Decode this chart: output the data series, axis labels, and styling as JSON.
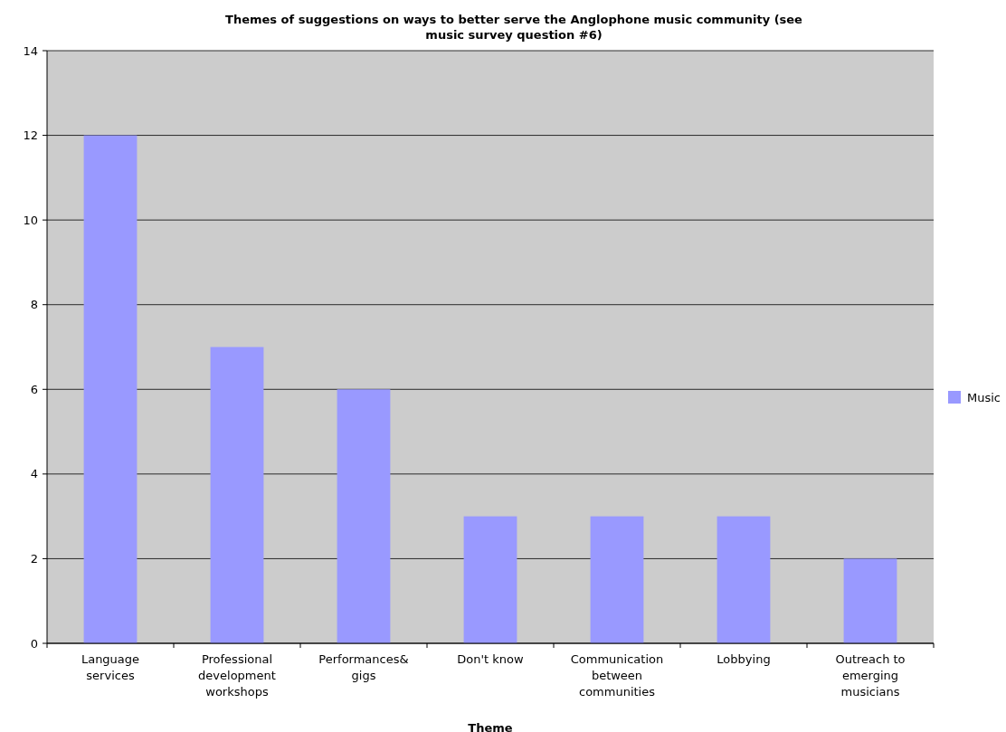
{
  "chart_data": {
    "type": "bar",
    "title": "Themes of suggestions on ways to better serve the Anglophone music community (see music survey question #6)",
    "xlabel": "Theme",
    "categories": [
      "Language services",
      "Professional development workshops",
      "Performances& gigs",
      "Don't know",
      "Communication between communities",
      "Lobbying",
      "Outreach to emerging musicians"
    ],
    "series": [
      {
        "name": "Music",
        "color": "#9999ff",
        "values": [
          12,
          7,
          6,
          3,
          3,
          3,
          2
        ]
      }
    ],
    "ylim": [
      0,
      14
    ],
    "yticks": [
      0,
      2,
      4,
      6,
      8,
      10,
      12,
      14
    ],
    "grid": "y",
    "legend": "right"
  }
}
